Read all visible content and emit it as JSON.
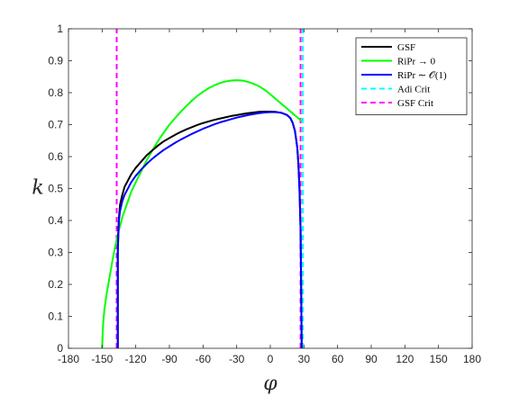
{
  "chart_data": {
    "type": "line",
    "title": "",
    "xlabel": "φ",
    "ylabel": "k",
    "xlim": [
      -180,
      180
    ],
    "ylim": [
      0,
      1
    ],
    "xticks": [
      -180,
      -150,
      -120,
      -90,
      -60,
      -30,
      0,
      30,
      60,
      90,
      120,
      150,
      180
    ],
    "yticks": [
      0,
      0.1,
      0.2,
      0.3,
      0.4,
      0.5,
      0.6,
      0.7,
      0.8,
      0.9,
      1
    ],
    "grid": false,
    "legend_position": "top-right",
    "series": [
      {
        "name": "GSF",
        "color": "#000000",
        "style": "solid",
        "x": [
          -136,
          -136,
          -135.5,
          -135,
          -134,
          -132,
          -130,
          -127,
          -124,
          -120,
          -115,
          -110,
          -105,
          -100,
          -95,
          -90,
          -85,
          -80,
          -75,
          -70,
          -65,
          -60,
          -55,
          -50,
          -45,
          -40,
          -35,
          -30,
          -25,
          -20,
          -15,
          -10,
          -5,
          0,
          5,
          10,
          15,
          18,
          20,
          22,
          24,
          25,
          26,
          27,
          27.5,
          28
        ],
        "y": [
          0,
          0.3,
          0.37,
          0.41,
          0.45,
          0.48,
          0.505,
          0.525,
          0.545,
          0.565,
          0.585,
          0.605,
          0.62,
          0.635,
          0.648,
          0.658,
          0.668,
          0.677,
          0.685,
          0.692,
          0.699,
          0.705,
          0.71,
          0.715,
          0.719,
          0.723,
          0.727,
          0.73,
          0.733,
          0.736,
          0.738,
          0.74,
          0.741,
          0.741,
          0.74,
          0.737,
          0.73,
          0.72,
          0.705,
          0.68,
          0.63,
          0.58,
          0.5,
          0.37,
          0.2,
          0
        ]
      },
      {
        "name": "RiPr → 0",
        "color": "#00ff00",
        "style": "solid",
        "x": [
          -150,
          -149.5,
          -149,
          -148,
          -146,
          -144,
          -142,
          -140,
          -137,
          -135,
          -132,
          -128,
          -124,
          -120,
          -115,
          -110,
          -105,
          -100,
          -95,
          -90,
          -85,
          -80,
          -75,
          -70,
          -65,
          -60,
          -55,
          -50,
          -45,
          -40,
          -35,
          -30,
          -25,
          -20,
          -15,
          -10,
          -5,
          0,
          5,
          10,
          15,
          20,
          25,
          28
        ],
        "y": [
          0,
          0.05,
          0.08,
          0.12,
          0.17,
          0.21,
          0.25,
          0.29,
          0.34,
          0.37,
          0.41,
          0.45,
          0.49,
          0.52,
          0.555,
          0.59,
          0.62,
          0.65,
          0.675,
          0.7,
          0.72,
          0.74,
          0.758,
          0.775,
          0.79,
          0.803,
          0.814,
          0.823,
          0.83,
          0.835,
          0.838,
          0.839,
          0.838,
          0.834,
          0.828,
          0.82,
          0.809,
          0.795,
          0.78,
          0.765,
          0.75,
          0.735,
          0.72,
          0.712
        ]
      },
      {
        "name": "RiPr ∼ 𝒪(1)",
        "color": "#0000ff",
        "style": "solid",
        "x": [
          -136,
          -136,
          -135.5,
          -135,
          -134,
          -132,
          -130,
          -127,
          -124,
          -120,
          -115,
          -110,
          -105,
          -100,
          -95,
          -90,
          -85,
          -80,
          -75,
          -70,
          -65,
          -60,
          -55,
          -50,
          -45,
          -40,
          -35,
          -30,
          -25,
          -20,
          -15,
          -10,
          -5,
          0,
          5,
          10,
          15,
          18,
          20,
          22,
          24,
          25,
          26,
          27,
          27.5,
          28
        ],
        "y": [
          0,
          0.3,
          0.36,
          0.4,
          0.43,
          0.46,
          0.48,
          0.5,
          0.52,
          0.54,
          0.56,
          0.578,
          0.594,
          0.608,
          0.621,
          0.632,
          0.643,
          0.653,
          0.662,
          0.671,
          0.679,
          0.687,
          0.694,
          0.701,
          0.707,
          0.712,
          0.717,
          0.722,
          0.726,
          0.73,
          0.733,
          0.736,
          0.738,
          0.739,
          0.739,
          0.737,
          0.73,
          0.72,
          0.705,
          0.68,
          0.63,
          0.58,
          0.5,
          0.37,
          0.2,
          0
        ]
      },
      {
        "name": "Adi Crit",
        "color": "#00ffff",
        "style": "dashed",
        "x": [
          29,
          29
        ],
        "y": [
          0,
          1
        ]
      },
      {
        "name": "GSF Crit",
        "color": "#ff00ff",
        "style": "dashed",
        "x": [
          -137,
          -137
        ],
        "y": [
          0,
          1
        ]
      },
      {
        "name": "",
        "color": "#ff00ff",
        "style": "dashed",
        "x": [
          27,
          27
        ],
        "y": [
          0,
          1
        ]
      }
    ]
  }
}
